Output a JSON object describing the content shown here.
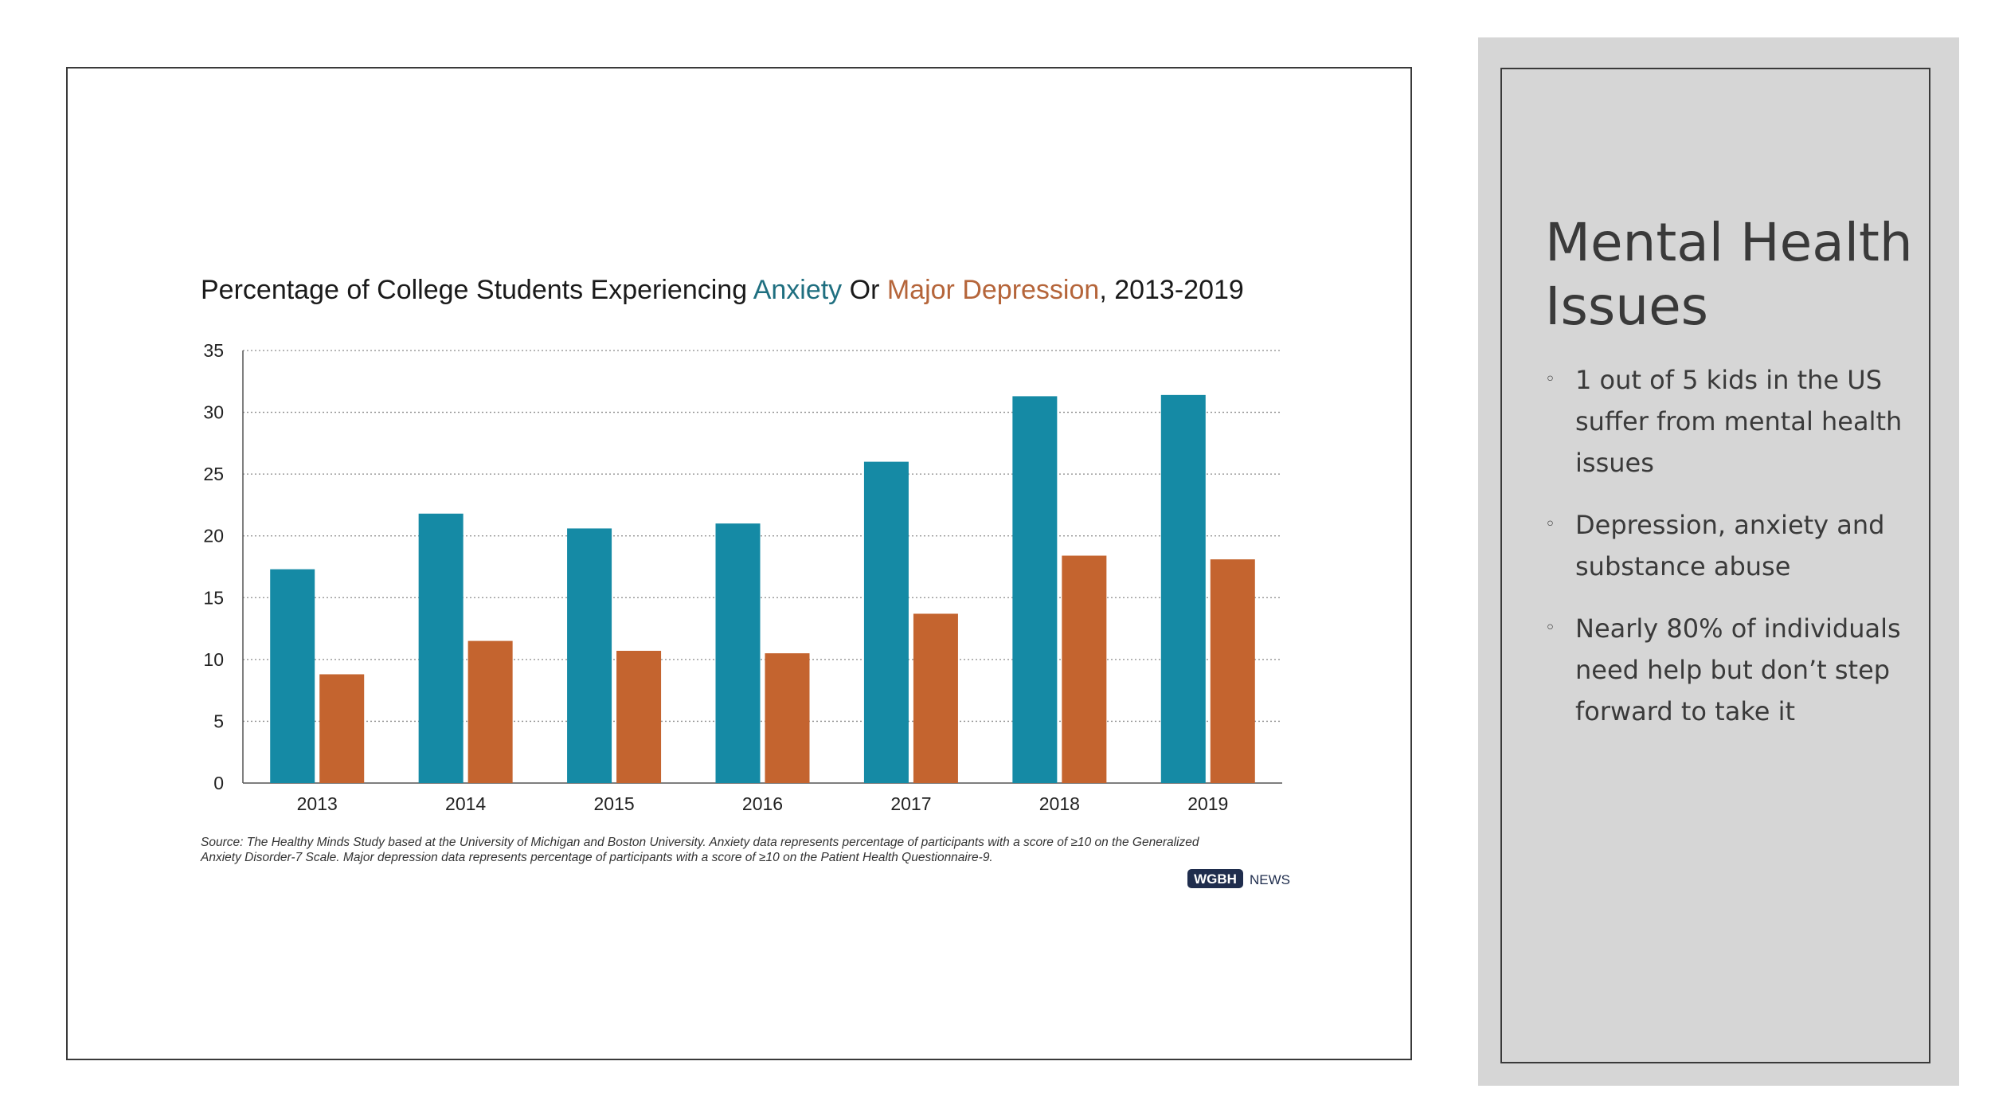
{
  "chart_data": {
    "type": "bar",
    "title_parts": [
      {
        "text": "Percentage of College Students Experiencing ",
        "color": "#1a1a1a"
      },
      {
        "text": "Anxiety",
        "color": "#1f6f80"
      },
      {
        "text": " Or ",
        "color": "#1a1a1a"
      },
      {
        "text": "Major Depression",
        "color": "#b5653a"
      },
      {
        "text": ", 2013-2019",
        "color": "#1a1a1a"
      }
    ],
    "categories": [
      "2013",
      "2014",
      "2015",
      "2016",
      "2017",
      "2018",
      "2019"
    ],
    "series": [
      {
        "name": "Anxiety",
        "color": "#158aa5",
        "values": [
          17.3,
          21.8,
          20.6,
          21.0,
          26.0,
          31.3,
          31.4
        ]
      },
      {
        "name": "Major Depression",
        "color": "#c4642f",
        "values": [
          8.8,
          11.5,
          10.7,
          10.5,
          13.7,
          18.4,
          18.1
        ]
      }
    ],
    "ylim": [
      0,
      35
    ],
    "yticks": [
      0,
      5,
      10,
      15,
      20,
      25,
      30,
      35
    ],
    "grid": "dotted horizontal",
    "xlabel": "",
    "ylabel": "",
    "source_lines": [
      "Source: The Healthy Minds Study based at the University of Michigan and Boston University. Anxiety data represents percentage of participants with a score of  ≥10 on the Generalized",
      "Anxiety Disorder-7 Scale. Major depression data represents percentage of participants with a score of ≥10 on the Patient Health Questionnaire-9."
    ],
    "logo_text": "WGBH",
    "logo_suffix": "NEWS"
  },
  "sidebar": {
    "title": "Mental Health Issues",
    "bullet_symbol": "◦",
    "bullets": [
      "1 out of 5 kids in the US suffer from mental health issues",
      "Depression, anxiety and substance abuse",
      "Nearly 80% of individuals need help but don’t step forward to take it"
    ]
  }
}
